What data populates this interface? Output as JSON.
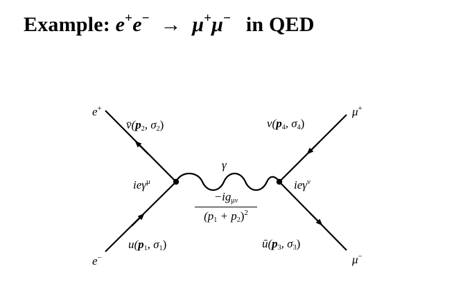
{
  "title": {
    "prefix": "Example:",
    "particle1": "e",
    "particle1_sup": "+",
    "particle2": "e",
    "particle2_sup": "−",
    "arrow": "→",
    "particle3": "μ",
    "particle3_sup": "+",
    "particle4": "μ",
    "particle4_sup": "−",
    "suffix": "in QED"
  },
  "diagram": {
    "top_left": {
      "name": "e",
      "sup": "+"
    },
    "bottom_left": {
      "name": "e",
      "sup": "−"
    },
    "top_right": {
      "name": "μ",
      "sup": "+"
    },
    "bottom_right": {
      "name": "μ",
      "sup": "−"
    },
    "spinor_top_left": {
      "func": "v̄(",
      "p": "p",
      "p_sub": "2",
      "sep": ", σ",
      "s_sub": "2",
      "close": ")"
    },
    "spinor_bottom_left": {
      "func": "u(",
      "p": "p",
      "p_sub": "1",
      "sep": ", σ",
      "s_sub": "1",
      "close": ")"
    },
    "spinor_top_right": {
      "func": "v(",
      "p": "p",
      "p_sub": "4",
      "sep": ", σ",
      "s_sub": "4",
      "close": ")"
    },
    "spinor_bottom_right": {
      "func": "ū(",
      "p": "p",
      "p_sub": "3",
      "sep": ", σ",
      "s_sub": "3",
      "close": ")"
    },
    "vertex_left": {
      "text": "ieγ",
      "sup": "μ"
    },
    "vertex_right": {
      "text": "ieγ",
      "sup": "ν"
    },
    "photon_label": "γ",
    "propagator": {
      "num": "−ig",
      "num_sub": "μν",
      "den": "(p",
      "den_sub1": "1",
      "den_mid": " + p",
      "den_sub2": "2",
      "den_close": ")",
      "den_sup": "2"
    }
  }
}
